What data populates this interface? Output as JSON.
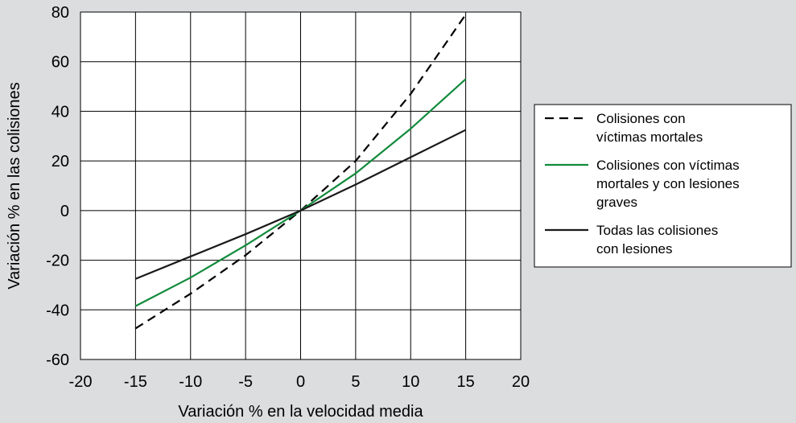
{
  "chart_data": {
    "type": "line",
    "title": "",
    "xlabel": "Variación % en la velocidad media",
    "ylabel": "Variación % en las colisiones",
    "xlim": [
      -20,
      20
    ],
    "ylim": [
      -60,
      80
    ],
    "x_ticks": [
      -20,
      -15,
      -10,
      -5,
      0,
      5,
      10,
      15,
      20
    ],
    "y_ticks": [
      -60,
      -40,
      -20,
      0,
      20,
      40,
      60,
      80
    ],
    "grid": true,
    "legend_position": "right",
    "series": [
      {
        "name_lines": [
          "Colisiones con",
          "víctimas mortales"
        ],
        "style": "dashed",
        "color": "#000000",
        "x": [
          -15,
          -10,
          -5,
          0,
          5,
          10,
          15
        ],
        "y": [
          -47.5,
          -33.5,
          -18,
          0,
          20,
          47,
          79
        ]
      },
      {
        "name_lines": [
          "Colisiones con víctimas",
          "mortales y con lesiones",
          "graves"
        ],
        "style": "solid",
        "color": "#118b3c",
        "x": [
          -15,
          -10,
          -5,
          0,
          5,
          10,
          15
        ],
        "y": [
          -38.5,
          -27,
          -14,
          0,
          15,
          33,
          53
        ]
      },
      {
        "name_lines": [
          "Todas las colisiones",
          "con lesiones"
        ],
        "style": "solid",
        "color": "#1a1a1a",
        "x": [
          -15,
          -10,
          -5,
          0,
          5,
          10,
          15
        ],
        "y": [
          -27.5,
          -18.5,
          -9.5,
          0,
          10.5,
          21.5,
          32.5
        ]
      }
    ]
  }
}
